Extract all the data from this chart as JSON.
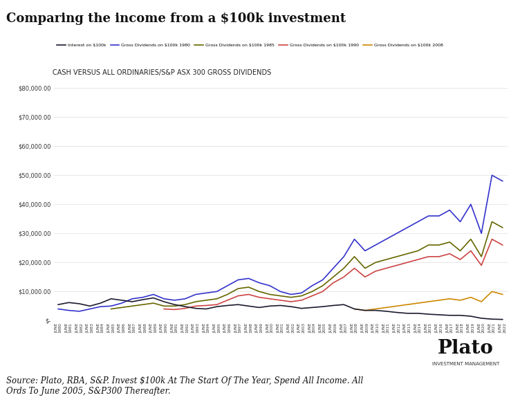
{
  "title": "Comparing the income from a $100k investment",
  "chart_subtitle": "CASH VERSUS ALL ORDINARIES/S&P ASX 300 GROSS DIVIDENDS",
  "source_text": "Source: Plato, RBA, S&P. Invest $100k At The Start Of The Year, Spend All Income. All\nOrds To June 2005, S&P300 Thereafter.",
  "bg_color": "#ffffff",
  "chart_bg": "#ffffff",
  "border_color": "#cccccc",
  "years": [
    1980,
    1981,
    1982,
    1983,
    1984,
    1985,
    1986,
    1987,
    1988,
    1989,
    1990,
    1991,
    1992,
    1993,
    1994,
    1995,
    1996,
    1997,
    1998,
    1999,
    2000,
    2001,
    2002,
    2003,
    2004,
    2005,
    2006,
    2007,
    2008,
    2009,
    2010,
    2011,
    2012,
    2013,
    2014,
    2015,
    2016,
    2017,
    2018,
    2019,
    2020,
    2021,
    2022
  ],
  "interest_100k": [
    5500,
    6200,
    5800,
    5000,
    6000,
    7500,
    7000,
    6500,
    7200,
    7800,
    6500,
    5500,
    4800,
    4200,
    4000,
    4800,
    5200,
    5500,
    5000,
    4500,
    5000,
    5200,
    4800,
    4200,
    4500,
    4800,
    5200,
    5500,
    4000,
    3500,
    3500,
    3200,
    2800,
    2500,
    2500,
    2200,
    2000,
    1800,
    1800,
    1500,
    800,
    500,
    400
  ],
  "gross_div_1980": [
    4000,
    3500,
    3200,
    4000,
    4800,
    5000,
    6000,
    7500,
    8000,
    9000,
    7500,
    7000,
    7500,
    9000,
    9500,
    10000,
    12000,
    14000,
    14500,
    13000,
    12000,
    10000,
    9000,
    9500,
    12000,
    14000,
    18000,
    22000,
    28000,
    24000,
    26000,
    28000,
    30000,
    32000,
    34000,
    36000,
    36000,
    38000,
    34000,
    40000,
    30000,
    50000,
    48000
  ],
  "gross_div_1985": [
    null,
    null,
    null,
    null,
    null,
    4000,
    4500,
    5000,
    5500,
    6000,
    5000,
    5000,
    5500,
    6500,
    7000,
    7500,
    9000,
    11000,
    11500,
    10000,
    9000,
    8500,
    8000,
    8500,
    10000,
    12000,
    15000,
    18000,
    22000,
    18000,
    20000,
    21000,
    22000,
    23000,
    24000,
    26000,
    26000,
    27000,
    24000,
    28000,
    22000,
    34000,
    32000
  ],
  "gross_div_1990": [
    null,
    null,
    null,
    null,
    null,
    null,
    null,
    null,
    null,
    null,
    4000,
    3800,
    4200,
    5000,
    5200,
    5500,
    7000,
    8500,
    9000,
    8000,
    7500,
    7000,
    6500,
    7000,
    8500,
    10000,
    13000,
    15000,
    18000,
    15000,
    17000,
    18000,
    19000,
    20000,
    21000,
    22000,
    22000,
    23000,
    21000,
    24000,
    19000,
    28000,
    26000
  ],
  "gross_div_2008": [
    null,
    null,
    null,
    null,
    null,
    null,
    null,
    null,
    null,
    null,
    null,
    null,
    null,
    null,
    null,
    null,
    null,
    null,
    null,
    null,
    null,
    null,
    null,
    null,
    null,
    null,
    null,
    null,
    4000,
    3500,
    4000,
    4500,
    5000,
    5500,
    6000,
    6500,
    7000,
    7500,
    7000,
    8000,
    6500,
    10000,
    9000
  ],
  "line_colors": {
    "interest": "#1a1a2e",
    "div_1980": "#3333cc",
    "div_1985": "#666600",
    "div_1990": "#cc4444",
    "div_2008": "#cc8800"
  },
  "legend_labels": {
    "interest": "Interest on $100k",
    "div_1980": "Gross Dividends on $100k 1980",
    "div_1985": "Gross Dividends on $100k 1985",
    "div_1990": "Gross Dividends on $100k 1990",
    "div_2008": "Gross Dividends on $100k 2008"
  },
  "ylim": [
    0,
    82000
  ],
  "yticks": [
    0,
    10000,
    20000,
    30000,
    40000,
    50000,
    60000,
    70000,
    80000
  ],
  "ytick_labels": [
    "$-",
    "$10,000.00",
    "$20,000.00",
    "$30,000.00",
    "$40,000.00",
    "$50,000.00",
    "$60,000.00",
    "$70,000.00",
    "$80,000.00"
  ]
}
